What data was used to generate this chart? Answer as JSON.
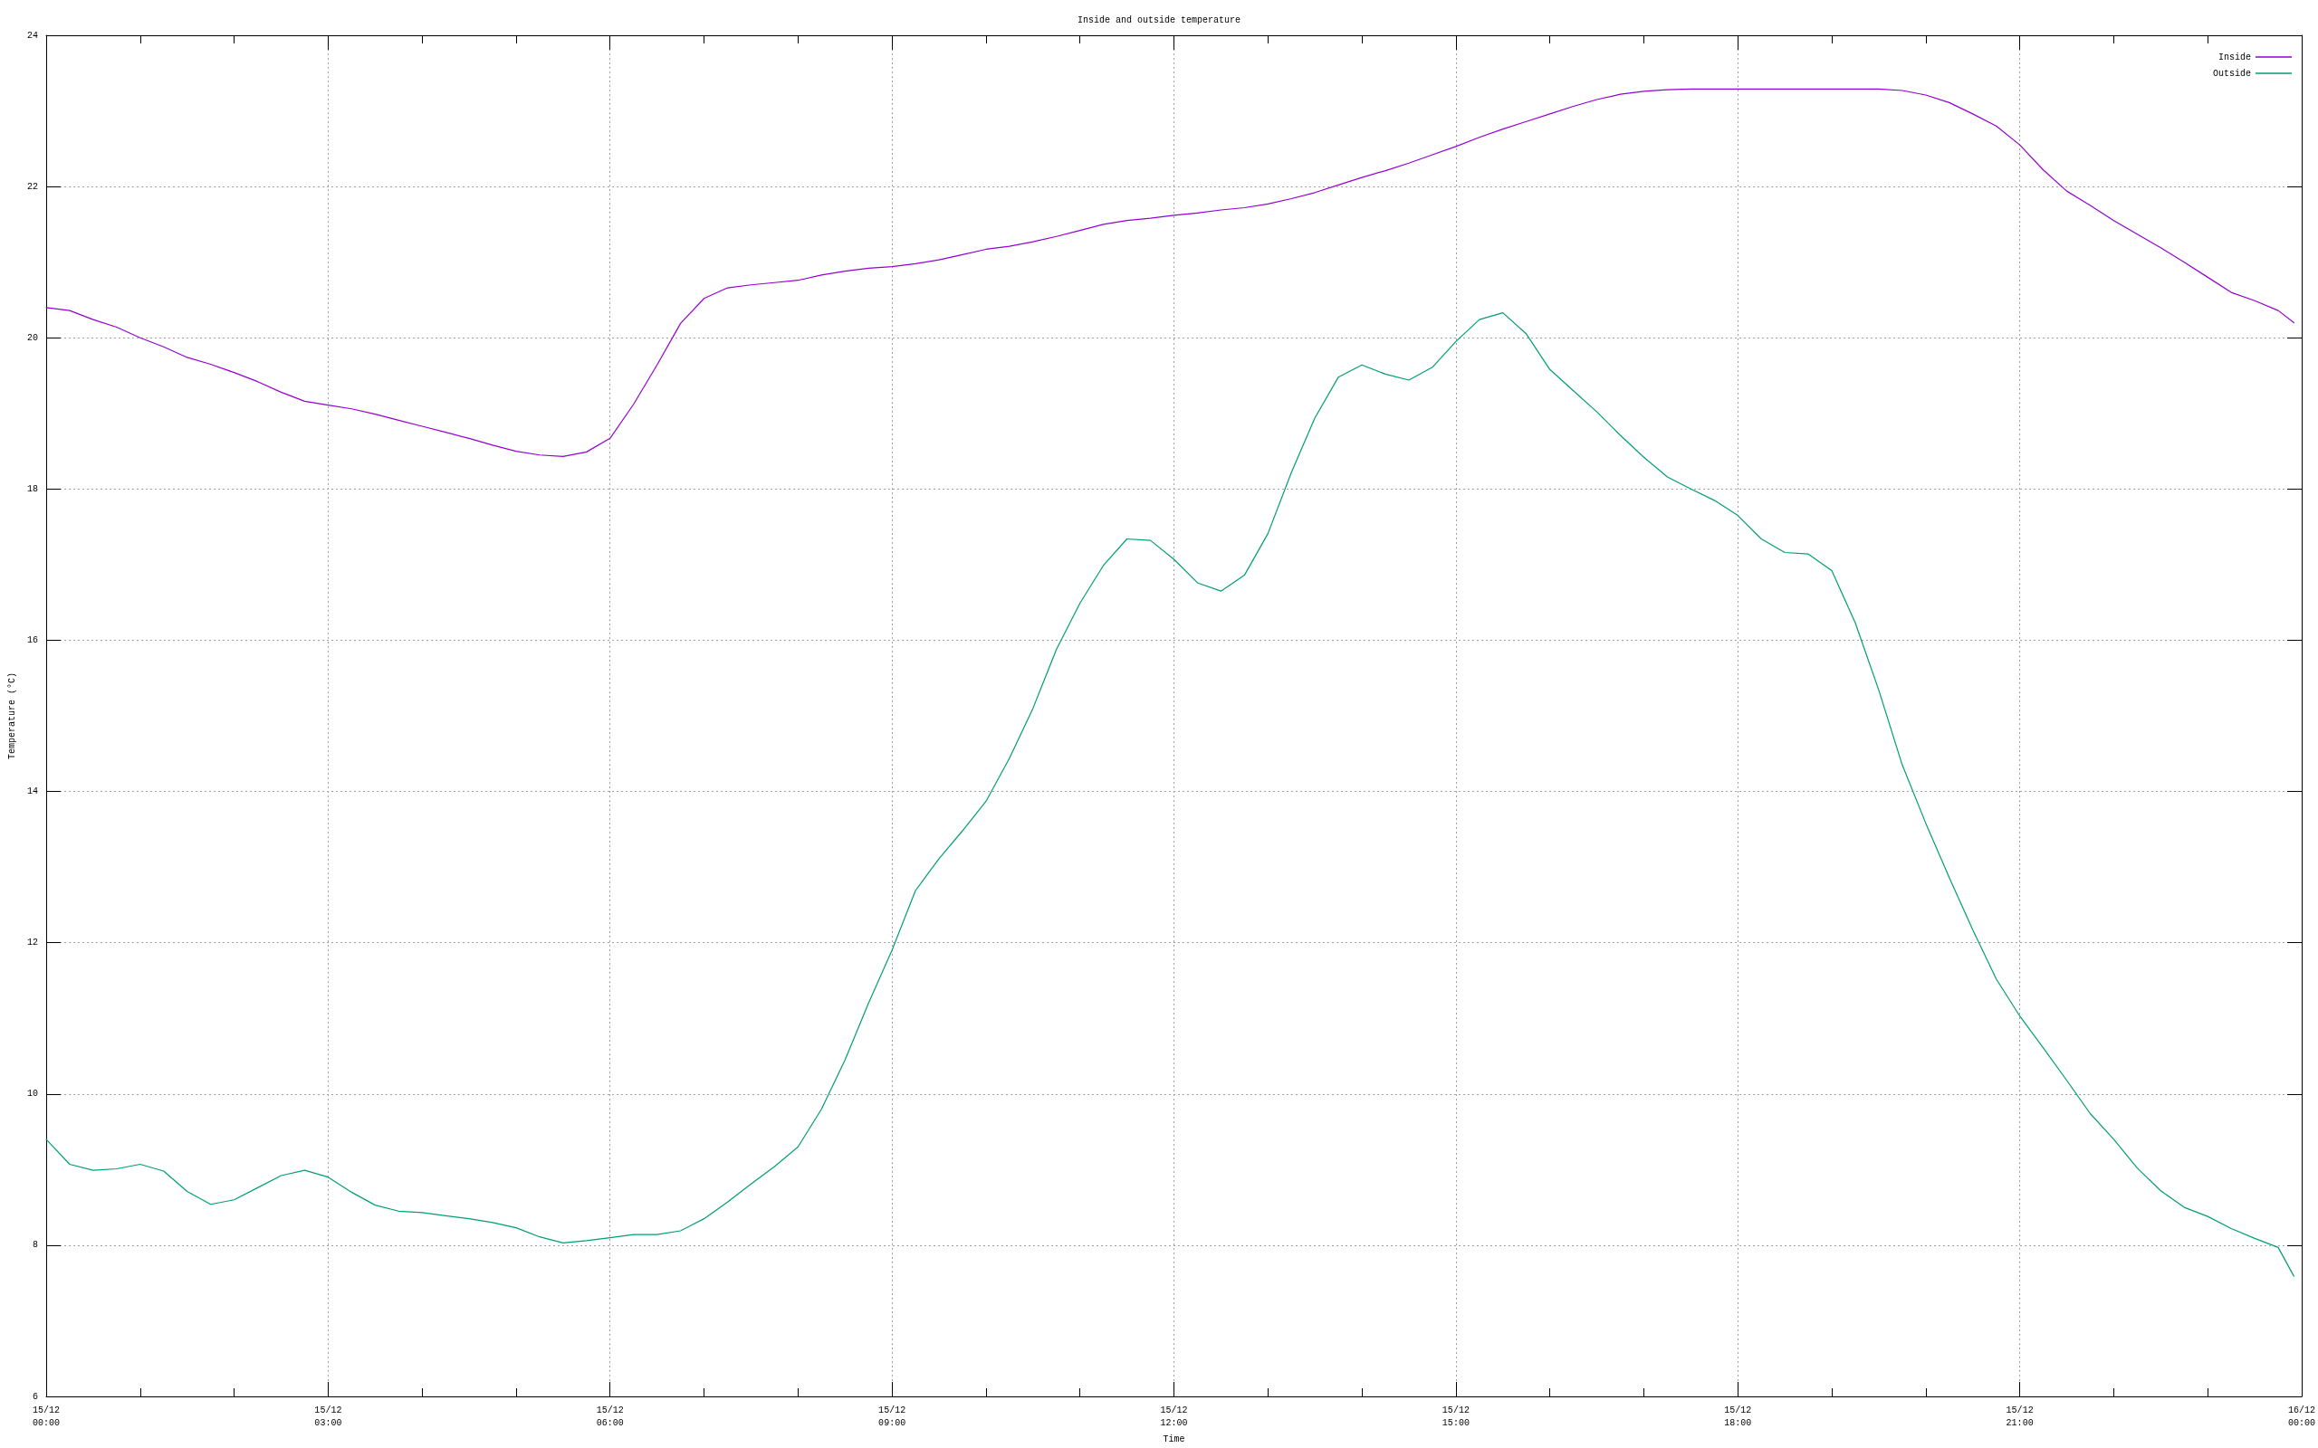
{
  "chart_data": {
    "type": "line",
    "title": "Inside and outside temperature",
    "xlabel": "Time",
    "ylabel": "Temperature (°C)",
    "x": [
      "--12-15T00:00",
      "--12-15T00:15",
      "--12-15T00:30",
      "--12-15T00:45",
      "--12-15T01:00",
      "--12-15T01:15",
      "--12-15T01:30",
      "--12-15T01:45",
      "--12-15T02:00",
      "--12-15T02:15",
      "--12-15T02:30",
      "--12-15T02:45",
      "--12-15T03:00",
      "--12-15T03:15",
      "--12-15T03:30",
      "--12-15T03:45",
      "--12-15T04:00",
      "--12-15T04:15",
      "--12-15T04:30",
      "--12-15T04:45",
      "--12-15T05:00",
      "--12-15T05:15",
      "--12-15T05:30",
      "--12-15T05:45",
      "--12-15T06:00",
      "--12-15T06:15",
      "--12-15T06:30",
      "--12-15T06:45",
      "--12-15T07:00",
      "--12-15T07:15",
      "--12-15T07:30",
      "--12-15T07:45",
      "--12-15T08:00",
      "--12-15T08:15",
      "--12-15T08:30",
      "--12-15T08:45",
      "--12-15T09:00",
      "--12-15T09:15",
      "--12-15T09:30",
      "--12-15T09:45",
      "--12-15T10:00",
      "--12-15T10:15",
      "--12-15T10:30",
      "--12-15T10:45",
      "--12-15T11:00",
      "--12-15T11:15",
      "--12-15T11:30",
      "--12-15T11:45",
      "--12-15T12:00",
      "--12-15T12:15",
      "--12-15T12:30",
      "--12-15T12:45",
      "--12-15T13:00",
      "--12-15T13:15",
      "--12-15T13:30",
      "--12-15T13:45",
      "--12-15T14:00",
      "--12-15T14:15",
      "--12-15T14:30",
      "--12-15T14:45",
      "--12-15T15:00",
      "--12-15T15:15",
      "--12-15T15:30",
      "--12-15T15:45",
      "--12-15T16:00",
      "--12-15T16:15",
      "--12-15T16:30",
      "--12-15T16:45",
      "--12-15T17:00",
      "--12-15T17:15",
      "--12-15T17:30",
      "--12-15T17:45",
      "--12-15T18:00",
      "--12-15T18:15",
      "--12-15T18:30",
      "--12-15T18:45",
      "--12-15T19:00",
      "--12-15T19:15",
      "--12-15T19:30",
      "--12-15T19:45",
      "--12-15T20:00",
      "--12-15T20:15",
      "--12-15T20:30",
      "--12-15T20:45",
      "--12-15T21:00",
      "--12-15T21:15",
      "--12-15T21:30",
      "--12-15T21:45",
      "--12-15T22:00",
      "--12-15T22:15",
      "--12-15T22:30",
      "--12-15T22:45",
      "--12-15T23:00",
      "--12-15T23:15",
      "--12-15T23:30",
      "--12-15T23:45",
      "--12-15T23:55"
    ],
    "series": [
      {
        "name": "Inside",
        "color": "#9400d3",
        "values": [
          20.4,
          20.36,
          20.24,
          20.14,
          20.0,
          19.88,
          19.74,
          19.65,
          19.54,
          19.42,
          19.28,
          19.16,
          19.11,
          19.06,
          18.99,
          18.91,
          18.83,
          18.75,
          18.67,
          18.58,
          18.5,
          18.45,
          18.43,
          18.49,
          18.67,
          19.12,
          19.64,
          20.19,
          20.52,
          20.66,
          20.7,
          20.73,
          20.76,
          20.83,
          20.88,
          20.92,
          20.94,
          20.98,
          21.03,
          21.1,
          21.17,
          21.21,
          21.27,
          21.34,
          21.42,
          21.5,
          21.55,
          21.58,
          21.62,
          21.65,
          21.69,
          21.72,
          21.77,
          21.84,
          21.92,
          22.02,
          22.12,
          22.21,
          22.31,
          22.42,
          22.53,
          22.65,
          22.76,
          22.86,
          22.96,
          23.06,
          23.15,
          23.22,
          23.26,
          23.28,
          23.29,
          23.29,
          23.29,
          23.29,
          23.29,
          23.29,
          23.29,
          23.29,
          23.29,
          23.27,
          23.21,
          23.11,
          22.96,
          22.8,
          22.55,
          22.22,
          21.94,
          21.75,
          21.55,
          21.37,
          21.19,
          21.0,
          20.8,
          20.6,
          20.49,
          20.36,
          20.2
        ]
      },
      {
        "name": "Outside",
        "color": "#009e73",
        "values": [
          9.4,
          9.07,
          8.99,
          9.01,
          9.07,
          8.98,
          8.71,
          8.54,
          8.6,
          8.76,
          8.92,
          8.99,
          8.9,
          8.7,
          8.53,
          8.45,
          8.43,
          8.39,
          8.35,
          8.3,
          8.23,
          8.11,
          8.03,
          8.06,
          8.1,
          8.14,
          8.14,
          8.19,
          8.35,
          8.57,
          8.81,
          9.04,
          9.3,
          9.8,
          10.45,
          11.2,
          11.9,
          12.69,
          13.11,
          13.48,
          13.87,
          14.44,
          15.1,
          15.88,
          16.49,
          16.99,
          17.34,
          17.32,
          17.07,
          16.76,
          16.65,
          16.86,
          17.41,
          18.22,
          18.94,
          19.48,
          19.64,
          19.52,
          19.44,
          19.61,
          19.95,
          20.24,
          20.33,
          20.05,
          19.58,
          19.3,
          19.02,
          18.71,
          18.42,
          18.16,
          18.0,
          17.85,
          17.65,
          17.34,
          17.16,
          17.14,
          16.92,
          16.23,
          15.34,
          14.35,
          13.58,
          12.86,
          12.17,
          11.52,
          11.03,
          10.61,
          10.18,
          9.74,
          9.4,
          9.02,
          8.72,
          8.5,
          8.38,
          8.22,
          8.09,
          7.97,
          7.59
        ]
      }
    ],
    "xlim": [
      "--12-15T00:00",
      "--12-16T00:00"
    ],
    "xticks": [
      {
        "value": "--12-15T00:00",
        "label": "15/12\n00:00"
      },
      {
        "value": "--12-15T01:00",
        "label": null
      },
      {
        "value": "--12-15T02:00",
        "label": null
      },
      {
        "value": "--12-15T03:00",
        "label": "15/12\n03:00"
      },
      {
        "value": "--12-15T04:00",
        "label": null
      },
      {
        "value": "--12-15T05:00",
        "label": null
      },
      {
        "value": "--12-15T06:00",
        "label": "15/12\n06:00"
      },
      {
        "value": "--12-15T07:00",
        "label": null
      },
      {
        "value": "--12-15T08:00",
        "label": null
      },
      {
        "value": "--12-15T09:00",
        "label": "15/12\n09:00"
      },
      {
        "value": "--12-15T10:00",
        "label": null
      },
      {
        "value": "--12-15T11:00",
        "label": null
      },
      {
        "value": "--12-15T12:00",
        "label": "15/12\n12:00"
      },
      {
        "value": "--12-15T13:00",
        "label": null
      },
      {
        "value": "--12-15T14:00",
        "label": null
      },
      {
        "value": "--12-15T15:00",
        "label": "15/12\n15:00"
      },
      {
        "value": "--12-15T16:00",
        "label": null
      },
      {
        "value": "--12-15T17:00",
        "label": null
      },
      {
        "value": "--12-15T18:00",
        "label": "15/12\n18:00"
      },
      {
        "value": "--12-15T19:00",
        "label": null
      },
      {
        "value": "--12-15T20:00",
        "label": null
      },
      {
        "value": "--12-15T21:00",
        "label": "15/12\n21:00"
      },
      {
        "value": "--12-15T22:00",
        "label": null
      },
      {
        "value": "--12-15T23:00",
        "label": null
      },
      {
        "value": "--12-16T00:00",
        "label": "16/12\n00:00"
      }
    ],
    "ylim": [
      6,
      24
    ],
    "yticks": [
      6,
      8,
      10,
      12,
      14,
      16,
      18,
      20,
      22,
      24
    ],
    "grid": true,
    "legend": "top right",
    "marker": "none",
    "line_style": "solid"
  }
}
